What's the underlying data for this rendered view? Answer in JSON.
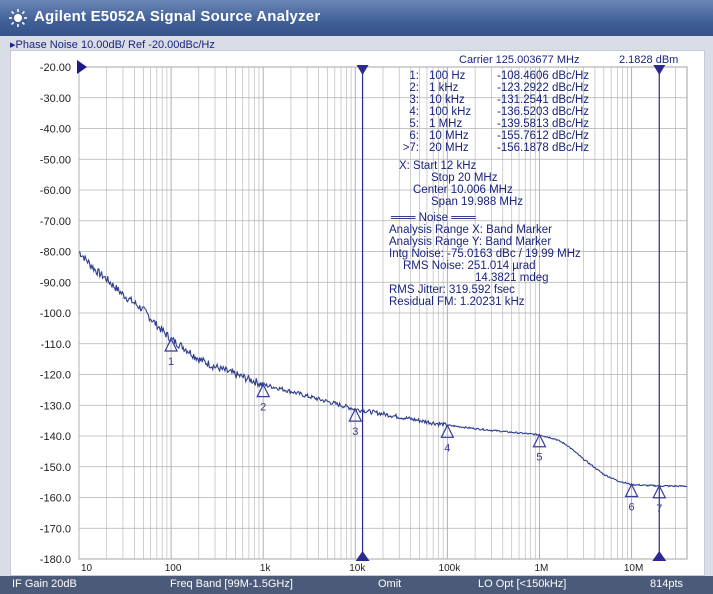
{
  "window": {
    "title": "Agilent E5052A Signal Source Analyzer",
    "icon": "sun-icon"
  },
  "trace_header": "▸Phase Noise 10.00dB/ Ref -20.00dBc/Hz",
  "carrier": {
    "label": "Carrier 125.003677 MHz",
    "power": "2.1828 dBm"
  },
  "markers_table": [
    {
      "id": "1:",
      "offset": "100 Hz",
      "value": "-108.4606 dBc/Hz"
    },
    {
      "id": "2:",
      "offset": "1 kHz",
      "value": "-123.2922 dBc/Hz"
    },
    {
      "id": "3:",
      "offset": "10 kHz",
      "value": "-131.2541 dBc/Hz"
    },
    {
      "id": "4:",
      "offset": "100 kHz",
      "value": "-136.5203 dBc/Hz"
    },
    {
      "id": "5:",
      "offset": "1 MHz",
      "value": "-139.5813 dBc/Hz"
    },
    {
      "id": "6:",
      "offset": "10 MHz",
      "value": "-155.7612 dBc/Hz"
    },
    {
      "id": ">7:",
      "offset": "20 MHz",
      "value": "-156.1878 dBc/Hz"
    }
  ],
  "sweep_info": [
    "X: Start 12 kHz",
    "Stop 20 MHz",
    "Center 10.006 MHz",
    "Span 19.988 MHz"
  ],
  "noise_info": [
    "═══ Noise ═══",
    "Analysis Range X: Band Marker",
    "Analysis Range Y: Band Marker",
    "Intg Noise: -75.0163 dBc / 19.99 MHz",
    "RMS Noise: 251.014 µrad",
    "14.3821 mdeg",
    "RMS Jitter: 319.592 fsec",
    "Residual FM: 1.20231 kHz"
  ],
  "statusbar": {
    "if_gain": "IF Gain 20dB",
    "freq_band": "Freq Band [99M-1.5GHz]",
    "omit": "Omit",
    "lo_opt": "LO Opt [<150kHz]",
    "points": "814pts"
  },
  "colors": {
    "trace": "#2f3f8f",
    "marker": "#3a3a9a",
    "grid": "#b0b0b0",
    "axis_text": "#222222",
    "info_text": "#1a237e"
  },
  "chart_data": {
    "type": "line",
    "title": "",
    "xlabel": "",
    "ylabel": "",
    "x_scale": "log",
    "xlim": [
      10,
      40000000
    ],
    "ylim": [
      -180,
      -20
    ],
    "y_ticks": [
      "-20.00",
      "-30.00",
      "-40.00",
      "-50.00",
      "-60.00",
      "-70.00",
      "-80.00",
      "-90.00",
      "-100.0",
      "-110.0",
      "-120.0",
      "-130.0",
      "-140.0",
      "-150.0",
      "-160.0",
      "-170.0",
      "-180.0"
    ],
    "x_tick_labels": [
      {
        "x": 10,
        "label": "10"
      },
      {
        "x": 100,
        "label": "100"
      },
      {
        "x": 1000,
        "label": "1k"
      },
      {
        "x": 10000,
        "label": "10k"
      },
      {
        "x": 100000,
        "label": "100k"
      },
      {
        "x": 1000000,
        "label": "1M"
      },
      {
        "x": 10000000,
        "label": "10M"
      }
    ],
    "grid": true,
    "series": [
      {
        "values": [
          [
            10,
            -80
          ],
          [
            15,
            -86
          ],
          [
            20,
            -89
          ],
          [
            30,
            -94
          ],
          [
            50,
            -99
          ],
          [
            70,
            -104
          ],
          [
            100,
            -108.5
          ],
          [
            150,
            -112
          ],
          [
            200,
            -115
          ],
          [
            300,
            -117.5
          ],
          [
            500,
            -120
          ],
          [
            700,
            -121.5
          ],
          [
            1000,
            -123.3
          ],
          [
            1500,
            -124.5
          ],
          [
            2000,
            -125.5
          ],
          [
            3000,
            -127
          ],
          [
            5000,
            -128.8
          ],
          [
            7000,
            -130
          ],
          [
            10000,
            -131.3
          ],
          [
            20000,
            -132.8
          ],
          [
            50000,
            -135
          ],
          [
            100000,
            -136.5
          ],
          [
            200000,
            -137.6
          ],
          [
            500000,
            -138.8
          ],
          [
            1000000,
            -139.6
          ],
          [
            1500000,
            -141
          ],
          [
            2000000,
            -143
          ],
          [
            3000000,
            -147.5
          ],
          [
            5000000,
            -152.5
          ],
          [
            7000000,
            -154.5
          ],
          [
            10000000,
            -155.8
          ],
          [
            15000000,
            -156.1
          ],
          [
            20000000,
            -156.2
          ],
          [
            30000000,
            -156.3
          ],
          [
            40000000,
            -156.3
          ]
        ]
      }
    ],
    "markers": [
      {
        "label": "1",
        "x": 100,
        "y": -108.4606
      },
      {
        "label": "2",
        "x": 1000,
        "y": -123.2922
      },
      {
        "label": "3",
        "x": 10000,
        "y": -131.2541
      },
      {
        "label": "4",
        "x": 100000,
        "y": -136.5203
      },
      {
        "label": "5",
        "x": 1000000,
        "y": -139.5813
      },
      {
        "label": "6",
        "x": 10000000,
        "y": -155.7612
      },
      {
        "label": "7",
        "x": 20000000,
        "y": -156.1878
      }
    ],
    "band_markers": [
      12000,
      20000000
    ]
  }
}
